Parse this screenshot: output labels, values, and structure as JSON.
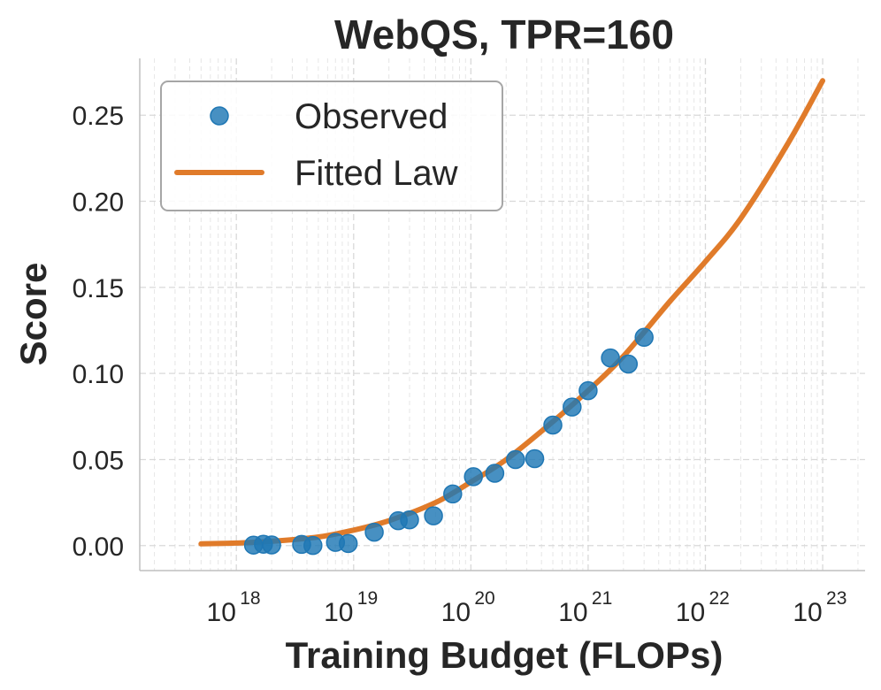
{
  "chart_data": {
    "type": "scatter",
    "title": "WebQS, TPR=160",
    "xlabel": "Training Budget (FLOPs)",
    "ylabel": "Score",
    "xscale": "log",
    "xlim": [
      1.5e+17,
      2.3e+23
    ],
    "ylim": [
      -0.0145,
      0.283
    ],
    "grid": true,
    "legend_position": "upper-left",
    "x_ticks": [
      {
        "base": "10",
        "exp": "18",
        "value": 1e+18
      },
      {
        "base": "10",
        "exp": "19",
        "value": 1e+19
      },
      {
        "base": "10",
        "exp": "20",
        "value": 1e+20
      },
      {
        "base": "10",
        "exp": "21",
        "value": 1e+21
      },
      {
        "base": "10",
        "exp": "22",
        "value": 1e+22
      },
      {
        "base": "10",
        "exp": "23",
        "value": 1e+23
      }
    ],
    "y_ticks": [
      {
        "label": "0.00",
        "value": 0.0
      },
      {
        "label": "0.05",
        "value": 0.05
      },
      {
        "label": "0.10",
        "value": 0.1
      },
      {
        "label": "0.15",
        "value": 0.15
      },
      {
        "label": "0.20",
        "value": 0.2
      },
      {
        "label": "0.25",
        "value": 0.25
      }
    ],
    "series": [
      {
        "name": "Observed",
        "kind": "scatter",
        "color": "#1f77b4",
        "points": [
          {
            "x": 1.4e+18,
            "y": 0.0003
          },
          {
            "x": 1.7e+18,
            "y": 0.0008
          },
          {
            "x": 2e+18,
            "y": 0.0004
          },
          {
            "x": 3.6e+18,
            "y": 0.0007
          },
          {
            "x": 4.5e+18,
            "y": 0.0001
          },
          {
            "x": 7e+18,
            "y": 0.0019
          },
          {
            "x": 9e+18,
            "y": 0.0012
          },
          {
            "x": 1.5e+19,
            "y": 0.0078
          },
          {
            "x": 2.4e+19,
            "y": 0.0145
          },
          {
            "x": 3e+19,
            "y": 0.015
          },
          {
            "x": 4.8e+19,
            "y": 0.0173
          },
          {
            "x": 7e+19,
            "y": 0.03
          },
          {
            "x": 1.05e+20,
            "y": 0.04
          },
          {
            "x": 1.6e+20,
            "y": 0.042
          },
          {
            "x": 2.4e+20,
            "y": 0.05
          },
          {
            "x": 3.5e+20,
            "y": 0.0505
          },
          {
            "x": 5e+20,
            "y": 0.07
          },
          {
            "x": 7.3e+20,
            "y": 0.0805
          },
          {
            "x": 1e+21,
            "y": 0.09
          },
          {
            "x": 1.55e+21,
            "y": 0.109
          },
          {
            "x": 2.2e+21,
            "y": 0.1055
          },
          {
            "x": 3e+21,
            "y": 0.121
          }
        ]
      },
      {
        "name": "Fitted Law",
        "kind": "line",
        "color": "#e07b2a",
        "points": [
          {
            "x": 5e+17,
            "y": 0.001
          },
          {
            "x": 1e+18,
            "y": 0.0015
          },
          {
            "x": 2e+18,
            "y": 0.0025
          },
          {
            "x": 5e+18,
            "y": 0.005
          },
          {
            "x": 1e+19,
            "y": 0.009
          },
          {
            "x": 2e+19,
            "y": 0.0145
          },
          {
            "x": 5e+19,
            "y": 0.025
          },
          {
            "x": 1e+20,
            "y": 0.037
          },
          {
            "x": 2e+20,
            "y": 0.05
          },
          {
            "x": 5e+20,
            "y": 0.072
          },
          {
            "x": 1e+21,
            "y": 0.09
          },
          {
            "x": 2e+21,
            "y": 0.11
          },
          {
            "x": 5e+21,
            "y": 0.142
          },
          {
            "x": 1e+22,
            "y": 0.165
          },
          {
            "x": 2e+22,
            "y": 0.19
          },
          {
            "x": 5e+22,
            "y": 0.233
          },
          {
            "x": 1e+23,
            "y": 0.27
          }
        ]
      }
    ]
  }
}
